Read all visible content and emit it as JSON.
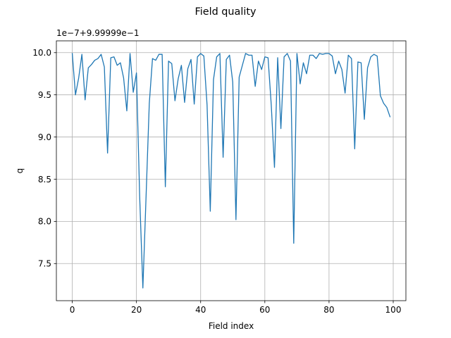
{
  "chart_data": {
    "type": "line",
    "title": "Field quality",
    "xlabel": "Field index",
    "ylabel": "q",
    "offset_label": "1e−7+9.99999e−1",
    "xlim": [
      -4.95,
      103.95
    ],
    "ylim": [
      7.06,
      10.14
    ],
    "xticks": [
      0,
      20,
      40,
      60,
      80,
      100
    ],
    "xtick_labels": [
      "0",
      "20",
      "40",
      "60",
      "80",
      "100"
    ],
    "yticks": [
      7.5,
      8.0,
      8.5,
      9.0,
      9.5,
      10.0
    ],
    "ytick_labels": [
      "7.5",
      "8.0",
      "8.5",
      "9.0",
      "9.5",
      "10.0"
    ],
    "grid": true,
    "line_color": "#1f77b4",
    "series": [
      {
        "x": [
          0,
          1,
          2,
          3,
          4,
          5,
          6,
          7,
          8,
          9,
          10,
          11,
          12,
          13,
          14,
          15,
          16,
          17,
          18,
          19,
          20,
          21,
          22,
          23,
          24,
          25,
          26,
          27,
          28,
          29,
          30,
          31,
          32,
          33,
          34,
          35,
          36,
          37,
          38,
          39,
          40,
          41,
          42,
          43,
          44,
          45,
          46,
          47,
          48,
          49,
          50,
          51,
          52,
          53,
          54,
          55,
          56,
          57,
          58,
          59,
          60,
          61,
          62,
          63,
          64,
          65,
          66,
          67,
          68,
          69,
          70,
          71,
          72,
          73,
          74,
          75,
          76,
          77,
          78,
          79,
          80,
          81,
          82,
          83,
          84,
          85,
          86,
          87,
          88,
          89,
          90,
          91,
          92,
          93,
          94,
          95,
          96,
          97,
          98,
          99
        ],
        "values": [
          9.99,
          9.5,
          9.7,
          9.98,
          9.44,
          9.82,
          9.86,
          9.91,
          9.93,
          9.98,
          9.83,
          8.81,
          9.94,
          9.95,
          9.85,
          9.88,
          9.7,
          9.31,
          9.99,
          9.53,
          9.76,
          8.3,
          7.21,
          8.3,
          9.4,
          9.93,
          9.91,
          9.98,
          9.98,
          8.41,
          9.9,
          9.87,
          9.43,
          9.69,
          9.85,
          9.41,
          9.81,
          9.92,
          9.39,
          9.95,
          9.99,
          9.96,
          9.38,
          8.12,
          9.68,
          9.95,
          9.99,
          8.76,
          9.92,
          9.97,
          9.65,
          8.02,
          9.71,
          9.85,
          9.99,
          9.97,
          9.97,
          9.6,
          9.9,
          9.8,
          9.95,
          9.94,
          9.38,
          8.64,
          9.94,
          9.1,
          9.95,
          9.99,
          9.9,
          7.74,
          9.99,
          9.63,
          9.88,
          9.75,
          9.97,
          9.97,
          9.93,
          9.99,
          9.98,
          9.99,
          9.99,
          9.96,
          9.75,
          9.9,
          9.8,
          9.52,
          9.97,
          9.93,
          8.86,
          9.89,
          9.88,
          9.21,
          9.82,
          9.95,
          9.98,
          9.96,
          9.49,
          9.4,
          9.35,
          9.24
        ]
      }
    ]
  }
}
